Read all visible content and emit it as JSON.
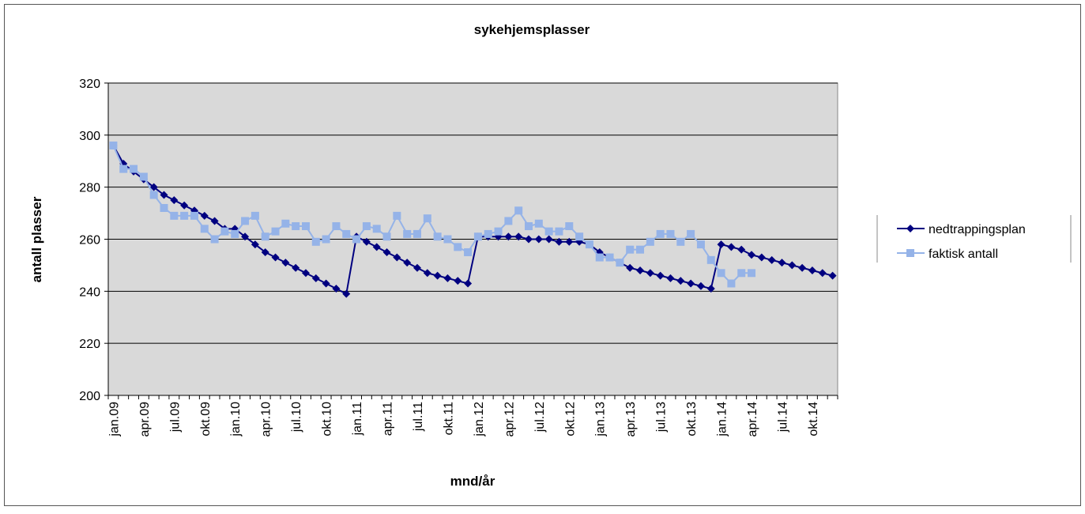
{
  "chart_data": {
    "type": "line",
    "title": "sykehjemsplasser",
    "x_label": "mnd/år",
    "y_label": "antall plasser",
    "categories": [
      "jan.09",
      null,
      null,
      "apr.09",
      null,
      null,
      "jul.09",
      null,
      null,
      "okt.09",
      null,
      null,
      "jan.10",
      null,
      null,
      "apr.10",
      null,
      null,
      "jul.10",
      null,
      null,
      "okt.10",
      null,
      null,
      "jan.11",
      null,
      null,
      "apr.11",
      null,
      null,
      "jul.11",
      null,
      null,
      "okt.11",
      null,
      null,
      "jan.12",
      null,
      null,
      "apr.12",
      null,
      null,
      "jul.12",
      null,
      null,
      "okt.12",
      null,
      null,
      "jan.13",
      null,
      null,
      "apr.13",
      null,
      null,
      "jul.13",
      null,
      null,
      "okt.13",
      null,
      null,
      "jan.14",
      null,
      null,
      "apr.14",
      null,
      null,
      "jul.14",
      null,
      null,
      "okt.14",
      null,
      null
    ],
    "series": [
      {
        "name": "nedtrappingsplan",
        "color": "#000080",
        "marker": "diamond",
        "values": [
          296,
          289,
          286,
          283,
          280,
          277,
          275,
          273,
          271,
          269,
          267,
          264,
          264,
          261,
          258,
          255,
          253,
          251,
          249,
          247,
          245,
          243,
          241,
          239,
          261,
          259,
          257,
          255,
          253,
          251,
          249,
          247,
          246,
          245,
          244,
          243,
          261,
          261,
          261,
          261,
          261,
          260,
          260,
          260,
          259,
          259,
          259,
          258,
          255,
          253,
          251,
          249,
          248,
          247,
          246,
          245,
          244,
          243,
          242,
          241,
          258,
          257,
          256,
          254,
          253,
          252,
          251,
          250,
          249,
          248,
          247,
          246
        ]
      },
      {
        "name": "faktisk antall",
        "color": "#95b3e8",
        "marker": "square",
        "values": [
          296,
          287,
          287,
          284,
          277,
          272,
          269,
          269,
          269,
          264,
          260,
          263,
          262,
          267,
          269,
          261,
          263,
          266,
          265,
          265,
          259,
          260,
          265,
          262,
          260,
          265,
          264,
          261,
          269,
          262,
          262,
          268,
          261,
          260,
          257,
          255,
          261,
          262,
          263,
          267,
          271,
          265,
          266,
          263,
          263,
          265,
          261,
          258,
          253,
          253,
          251,
          256,
          256,
          259,
          262,
          262,
          259,
          262,
          258,
          252,
          247,
          243,
          247,
          247,
          null,
          null,
          null,
          null,
          null,
          null,
          null,
          null
        ]
      }
    ],
    "ylim": [
      200,
      320
    ],
    "yticks": [
      200,
      220,
      240,
      260,
      280,
      300,
      320
    ],
    "grid": true,
    "legend": "right"
  }
}
